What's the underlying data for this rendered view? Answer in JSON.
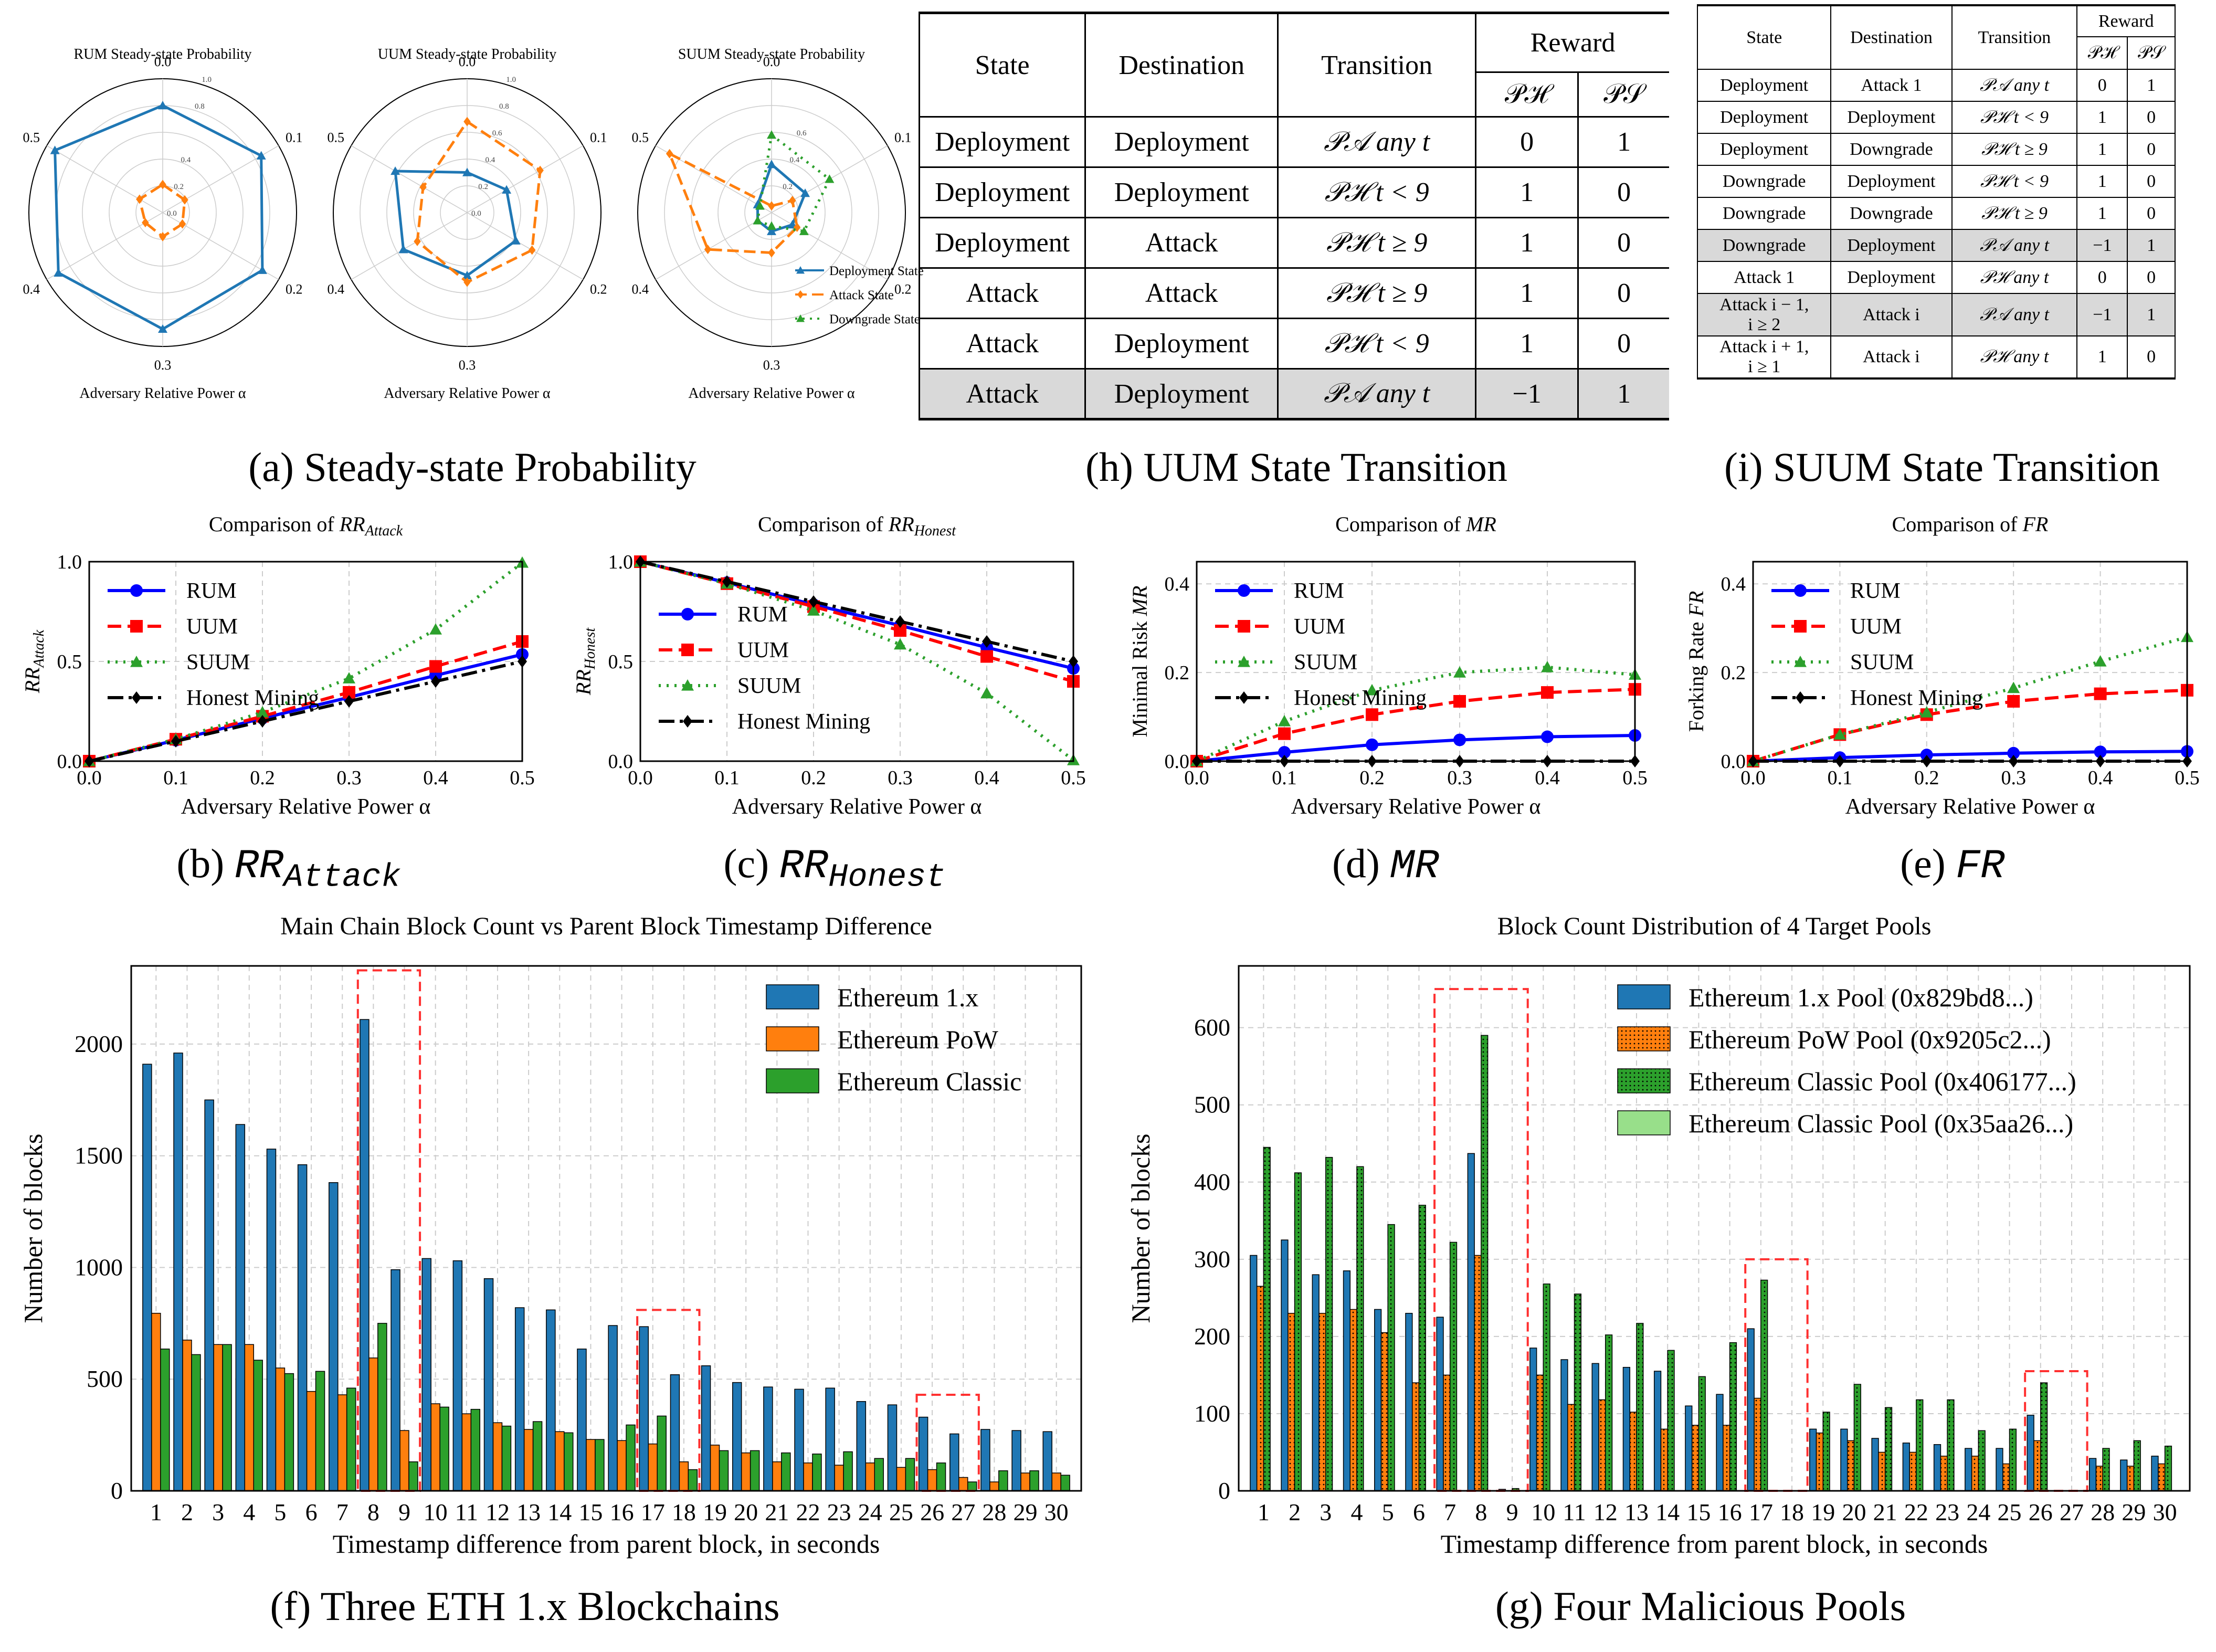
{
  "captions": {
    "a": "(a) Steady-state Probability",
    "h": "(h) UUM State Transition",
    "i": "(i) SUUM State Transition",
    "b_pre": "(b) ",
    "b_math": "RR",
    "b_sub": "Attack",
    "c_pre": "(c) ",
    "c_math": "RR",
    "c_sub": "Honest",
    "d_pre": "(d) ",
    "d_math": "MR",
    "e_pre": "(e) ",
    "e_math": "FR",
    "f": "(f) Three ETH 1.x Blockchains",
    "g": "(g) Four Malicious Pools"
  },
  "colors": {
    "blue": "#1f77b4",
    "orange": "#ff7f0e",
    "green": "#2ca02c",
    "light_green": "#98df8a",
    "red": "#ff0000",
    "black": "#000000",
    "pure_blue": "#0000ff",
    "grid": "#cccccc",
    "highlight": "#d9d9d9",
    "dashed_box": "#ff3030"
  },
  "uum_table": {
    "headers": {
      "state": "State",
      "destination": "Destination",
      "transition": "Transition",
      "reward": "Reward",
      "ph": "𝒫ℋ",
      "ps": "𝒫𝒮"
    },
    "rows": [
      {
        "state": "Deployment",
        "dest": "Deployment",
        "trans": "𝒫𝒜   any t",
        "ph": "0",
        "ps": "1",
        "hl": false
      },
      {
        "state": "Deployment",
        "dest": "Deployment",
        "trans": "𝒫ℋ   t < 9",
        "ph": "1",
        "ps": "0",
        "hl": false
      },
      {
        "state": "Deployment",
        "dest": "Attack",
        "trans": "𝒫ℋ   t ≥ 9",
        "ph": "1",
        "ps": "0",
        "hl": false
      },
      {
        "state": "Attack",
        "dest": "Attack",
        "trans": "𝒫ℋ   t ≥ 9",
        "ph": "1",
        "ps": "0",
        "hl": false
      },
      {
        "state": "Attack",
        "dest": "Deployment",
        "trans": "𝒫ℋ   t < 9",
        "ph": "1",
        "ps": "0",
        "hl": false
      },
      {
        "state": "Attack",
        "dest": "Deployment",
        "trans": "𝒫𝒜   any t",
        "ph": "−1",
        "ps": "1",
        "hl": true
      }
    ]
  },
  "suum_table": {
    "headers": {
      "state": "State",
      "destination": "Destination",
      "transition": "Transition",
      "reward": "Reward",
      "ph": "𝒫ℋ",
      "ps": "𝒫𝒮"
    },
    "rows": [
      {
        "state": "Deployment",
        "state2": "",
        "dest": "Attack 1",
        "trans": "𝒫𝒜   any t",
        "ph": "0",
        "ps": "1",
        "hl": false
      },
      {
        "state": "Deployment",
        "state2": "",
        "dest": "Deployment",
        "trans": "𝒫ℋ   t < 9",
        "ph": "1",
        "ps": "0",
        "hl": false
      },
      {
        "state": "Deployment",
        "state2": "",
        "dest": "Downgrade",
        "trans": "𝒫ℋ   t ≥ 9",
        "ph": "1",
        "ps": "0",
        "hl": false
      },
      {
        "state": "Downgrade",
        "state2": "",
        "dest": "Deployment",
        "trans": "𝒫ℋ   t < 9",
        "ph": "1",
        "ps": "0",
        "hl": false
      },
      {
        "state": "Downgrade",
        "state2": "",
        "dest": "Downgrade",
        "trans": "𝒫ℋ   t ≥ 9",
        "ph": "1",
        "ps": "0",
        "hl": false
      },
      {
        "state": "Downgrade",
        "state2": "",
        "dest": "Deployment",
        "trans": "𝒫𝒜   any t",
        "ph": "−1",
        "ps": "1",
        "hl": true
      },
      {
        "state": "Attack 1",
        "state2": "",
        "dest": "Deployment",
        "trans": "𝒫ℋ   any t",
        "ph": "0",
        "ps": "0",
        "hl": false
      },
      {
        "state": "Attack i − 1,",
        "state2": "i ≥ 2",
        "dest": "Attack i",
        "trans": "𝒫𝒜   any t",
        "ph": "−1",
        "ps": "1",
        "hl": true
      },
      {
        "state": "Attack i + 1,",
        "state2": "i ≥ 1",
        "dest": "Attack i",
        "trans": "𝒫ℋ   any t",
        "ph": "1",
        "ps": "0",
        "hl": false
      }
    ]
  },
  "chart_data": [
    {
      "id": "radar_rum",
      "type": "radar",
      "title": "RUM Steady-state Probability",
      "xlabel": "Adversary Relative Power α",
      "axis_labels": [
        "0.0",
        "0.1",
        "0.2",
        "0.3",
        "0.4",
        "0.5"
      ],
      "ring_labels": [
        "0.0",
        "0.2",
        "0.4",
        "0.8",
        "1.0"
      ],
      "rlim": [
        0,
        1
      ],
      "series": [
        {
          "name": "Deployment State",
          "color": "#1f77b4",
          "style": "solid",
          "marker": "tri",
          "values": [
            0.8,
            0.85,
            0.86,
            0.87,
            0.9,
            0.93
          ]
        },
        {
          "name": "Attack State",
          "color": "#ff7f0e",
          "style": "dash",
          "marker": "diamond",
          "values": [
            0.21,
            0.19,
            0.17,
            0.18,
            0.15,
            0.2
          ]
        }
      ]
    },
    {
      "id": "radar_uum",
      "type": "radar",
      "title": "UUM Steady-state Probability",
      "xlabel": "Adversary Relative Power α",
      "axis_labels": [
        "0.0",
        "0.1",
        "0.2",
        "0.3",
        "0.4",
        "0.5"
      ],
      "ring_labels": [
        "0.0",
        "0.2",
        "0.4",
        "0.6",
        "0.8",
        "1.0"
      ],
      "rlim": [
        0,
        1
      ],
      "series": [
        {
          "name": "Deployment State",
          "color": "#1f77b4",
          "style": "solid",
          "marker": "tri",
          "values": [
            0.3,
            0.34,
            0.42,
            0.47,
            0.55,
            0.62
          ]
        },
        {
          "name": "Attack State",
          "color": "#ff7f0e",
          "style": "dash",
          "marker": "diamond",
          "values": [
            0.68,
            0.63,
            0.56,
            0.52,
            0.43,
            0.38
          ]
        }
      ]
    },
    {
      "id": "radar_suum",
      "type": "radar",
      "title": "SUUM Steady-state Probability",
      "xlabel": "Adversary Relative Power α",
      "axis_labels": [
        "0.0",
        "0.1",
        "0.2",
        "0.3",
        "0.4",
        "0.5"
      ],
      "ring_labels": [
        "0.2",
        "0.4",
        "0.6"
      ],
      "rlim": [
        0,
        1
      ],
      "legend": [
        "Deployment State",
        "Attack State",
        "Downgrade State"
      ],
      "series": [
        {
          "name": "Deployment State",
          "color": "#1f77b4",
          "style": "solid",
          "marker": "tri",
          "values": [
            0.36,
            0.29,
            0.18,
            0.14,
            0.12,
            0.12
          ]
        },
        {
          "name": "Attack State",
          "color": "#ff7f0e",
          "style": "dash",
          "marker": "diamond",
          "values": [
            0.05,
            0.18,
            0.22,
            0.3,
            0.55,
            0.88
          ]
        },
        {
          "name": "Downgrade State",
          "color": "#2ca02c",
          "style": "dot",
          "marker": "tri",
          "values": [
            0.58,
            0.5,
            0.28,
            0.1,
            0.12,
            0.1
          ]
        }
      ]
    },
    {
      "id": "rr_attack",
      "type": "line",
      "title": "Comparison of ",
      "title_math": "RR",
      "title_sub": "Attack",
      "xlabel": "Adversary Relative Power α",
      "ylabel": "RR",
      "ylabel_sub": "Attack",
      "xlim": [
        0,
        0.5
      ],
      "ylim": [
        0,
        1.0
      ],
      "xticks": [
        "0.0",
        "0.1",
        "0.2",
        "0.3",
        "0.4",
        "0.5"
      ],
      "yticks": [
        "0.0",
        "0.5",
        "1.0"
      ],
      "x": [
        0,
        0.1,
        0.2,
        0.3,
        0.4,
        0.5
      ],
      "legend_pos": "upper-left",
      "series": [
        {
          "name": "RUM",
          "values": [
            0,
            0.105,
            0.215,
            0.32,
            0.43,
            0.535
          ]
        },
        {
          "name": "UUM",
          "values": [
            0,
            0.11,
            0.225,
            0.345,
            0.475,
            0.6
          ]
        },
        {
          "name": "SUUM",
          "values": [
            0,
            0.11,
            0.245,
            0.415,
            0.66,
            0.995
          ]
        },
        {
          "name": "Honest Mining",
          "values": [
            0,
            0.1,
            0.2,
            0.3,
            0.4,
            0.5
          ]
        }
      ]
    },
    {
      "id": "rr_honest",
      "type": "line",
      "title": "Comparison of ",
      "title_math": "RR",
      "title_sub": "Honest",
      "xlabel": "Adversary Relative Power α",
      "ylabel": "RR",
      "ylabel_sub": "Honest",
      "xlim": [
        0,
        0.5
      ],
      "ylim": [
        0,
        1.0
      ],
      "xticks": [
        "0.0",
        "0.1",
        "0.2",
        "0.3",
        "0.4",
        "0.5"
      ],
      "yticks": [
        "0.0",
        "0.5",
        "1.0"
      ],
      "x": [
        0,
        0.1,
        0.2,
        0.3,
        0.4,
        0.5
      ],
      "legend_pos": "center-left",
      "series": [
        {
          "name": "RUM",
          "values": [
            1.0,
            0.895,
            0.785,
            0.68,
            0.57,
            0.465
          ]
        },
        {
          "name": "UUM",
          "values": [
            1.0,
            0.89,
            0.775,
            0.655,
            0.525,
            0.4
          ]
        },
        {
          "name": "SUUM",
          "values": [
            1.0,
            0.89,
            0.755,
            0.585,
            0.34,
            0.005
          ]
        },
        {
          "name": "Honest Mining",
          "values": [
            1.0,
            0.9,
            0.8,
            0.7,
            0.6,
            0.5
          ]
        }
      ]
    },
    {
      "id": "mr",
      "type": "line",
      "title": "Comparison of ",
      "title_math": "MR",
      "title_sub": "",
      "xlabel": "Adversary Relative Power α",
      "ylabel": "Minimal Risk ",
      "ylabel_math": "MR",
      "xlim": [
        0,
        0.5
      ],
      "ylim": [
        0,
        0.45
      ],
      "xticks": [
        "0.0",
        "0.1",
        "0.2",
        "0.3",
        "0.4",
        "0.5"
      ],
      "yticks": [
        "0.0",
        "0.2",
        "0.4"
      ],
      "x": [
        0,
        0.1,
        0.2,
        0.3,
        0.4,
        0.5
      ],
      "legend_pos": "upper-left",
      "series": [
        {
          "name": "RUM",
          "values": [
            0,
            0.02,
            0.037,
            0.048,
            0.055,
            0.058
          ]
        },
        {
          "name": "UUM",
          "values": [
            0,
            0.062,
            0.105,
            0.135,
            0.155,
            0.162
          ]
        },
        {
          "name": "SUUM",
          "values": [
            0,
            0.09,
            0.16,
            0.2,
            0.212,
            0.195
          ]
        },
        {
          "name": "Honest Mining",
          "values": [
            0,
            0,
            0,
            0,
            0,
            0
          ]
        }
      ]
    },
    {
      "id": "fr",
      "type": "line",
      "title": "Comparison of ",
      "title_math": "FR",
      "title_sub": "",
      "xlabel": "Adversary Relative Power α",
      "ylabel": "Forking Rate ",
      "ylabel_math": "FR",
      "xlim": [
        0,
        0.5
      ],
      "ylim": [
        0,
        0.45
      ],
      "xticks": [
        "0.0",
        "0.1",
        "0.2",
        "0.3",
        "0.4",
        "0.5"
      ],
      "yticks": [
        "0.0",
        "0.2",
        "0.4"
      ],
      "x": [
        0,
        0.1,
        0.2,
        0.3,
        0.4,
        0.5
      ],
      "legend_pos": "upper-left",
      "series": [
        {
          "name": "RUM",
          "values": [
            0,
            0.008,
            0.014,
            0.018,
            0.021,
            0.022
          ]
        },
        {
          "name": "UUM",
          "values": [
            0,
            0.06,
            0.105,
            0.135,
            0.152,
            0.16
          ]
        },
        {
          "name": "SUUM",
          "values": [
            0,
            0.06,
            0.11,
            0.165,
            0.225,
            0.28
          ]
        },
        {
          "name": "Honest Mining",
          "values": [
            0,
            0,
            0,
            0,
            0,
            0
          ]
        }
      ]
    },
    {
      "id": "eth_blockchains",
      "type": "bar",
      "title": "Main Chain Block Count vs Parent Block Timestamp Difference",
      "xlabel": "Timestamp difference from parent block, in seconds",
      "ylabel": "Number of blocks",
      "categories": [
        "1",
        "2",
        "3",
        "4",
        "5",
        "6",
        "7",
        "8",
        "9",
        "10",
        "11",
        "12",
        "13",
        "14",
        "15",
        "16",
        "17",
        "18",
        "19",
        "20",
        "21",
        "22",
        "23",
        "24",
        "25",
        "26",
        "27",
        "28",
        "29",
        "30"
      ],
      "ylim": [
        0,
        2350
      ],
      "yticks": [
        0,
        500,
        1000,
        1500,
        2000
      ],
      "legend_pos": "upper-right",
      "series": [
        {
          "name": "Ethereum 1.x",
          "hatch": "",
          "values": [
            1910,
            1960,
            1750,
            1640,
            1530,
            1460,
            1380,
            2110,
            990,
            1040,
            1030,
            950,
            820,
            810,
            635,
            740,
            735,
            520,
            560,
            485,
            465,
            455,
            460,
            400,
            385,
            330,
            255,
            275,
            270,
            265
          ]
        },
        {
          "name": "Ethereum PoW",
          "hatch": "",
          "values": [
            795,
            675,
            655,
            655,
            550,
            445,
            430,
            595,
            270,
            390,
            345,
            305,
            275,
            265,
            230,
            225,
            210,
            130,
            205,
            170,
            130,
            125,
            115,
            125,
            105,
            95,
            60,
            40,
            80,
            80
          ]
        },
        {
          "name": "Ethereum Classic",
          "hatch": "",
          "values": [
            635,
            610,
            655,
            585,
            525,
            535,
            460,
            750,
            130,
            375,
            365,
            290,
            310,
            260,
            230,
            295,
            335,
            95,
            180,
            180,
            170,
            165,
            175,
            145,
            145,
            125,
            40,
            90,
            90,
            70
          ]
        }
      ],
      "boxes": [
        [
          8,
          9
        ],
        [
          17,
          18
        ],
        [
          26,
          27
        ]
      ]
    },
    {
      "id": "malicious_pools",
      "type": "bar",
      "title": "Block Count Distribution of 4 Target Pools",
      "xlabel": "Timestamp difference from parent block, in seconds",
      "ylabel": "Number of blocks",
      "categories": [
        "1",
        "2",
        "3",
        "4",
        "5",
        "6",
        "7",
        "8",
        "9",
        "10",
        "11",
        "12",
        "13",
        "14",
        "15",
        "16",
        "17",
        "18",
        "19",
        "20",
        "21",
        "22",
        "23",
        "24",
        "25",
        "26",
        "27",
        "28",
        "29",
        "30"
      ],
      "ylim": [
        0,
        680
      ],
      "yticks": [
        0,
        100,
        200,
        300,
        400,
        500,
        600
      ],
      "legend_pos": "upper-right",
      "series": [
        {
          "name": "Ethereum 1.x Pool (0x829bd8...)",
          "hatch": "",
          "values": [
            305,
            325,
            280,
            285,
            235,
            230,
            225,
            437,
            2,
            185,
            170,
            165,
            160,
            155,
            110,
            125,
            210,
            0,
            80,
            80,
            68,
            62,
            60,
            55,
            55,
            98,
            0,
            42,
            40,
            45
          ]
        },
        {
          "name": "Ethereum PoW Pool (0x9205c2...)",
          "hatch": "dots",
          "values": [
            265,
            230,
            230,
            235,
            205,
            140,
            150,
            305,
            0,
            150,
            112,
            118,
            102,
            80,
            85,
            85,
            120,
            0,
            75,
            65,
            50,
            50,
            45,
            45,
            35,
            65,
            0,
            32,
            32,
            35
          ]
        },
        {
          "name": "Ethereum Classic Pool (0x406177...)",
          "hatch": "dots",
          "values": [
            445,
            412,
            432,
            420,
            345,
            370,
            322,
            590,
            3,
            268,
            255,
            202,
            217,
            182,
            148,
            192,
            273,
            0,
            102,
            138,
            108,
            118,
            118,
            78,
            80,
            140,
            0,
            55,
            65,
            58
          ]
        },
        {
          "name": "Ethereum Classic Pool (0x35aa26...)",
          "hatch": "",
          "values": [
            0,
            0,
            0,
            0,
            0,
            0,
            0,
            0,
            0,
            0,
            0,
            0,
            0,
            0,
            0,
            0,
            0,
            0,
            0,
            0,
            0,
            0,
            0,
            0,
            0,
            0,
            0,
            0,
            0,
            0
          ]
        }
      ],
      "boxes": [
        [
          7,
          9
        ],
        [
          17,
          18
        ],
        [
          26,
          27
        ]
      ]
    }
  ]
}
